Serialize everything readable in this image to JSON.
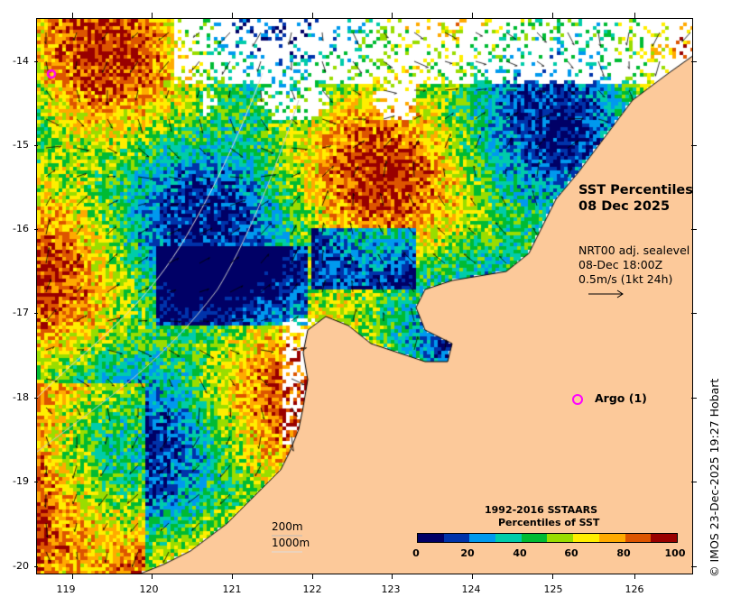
{
  "map": {
    "title_line1": "SST Percentiles",
    "title_line2": "08 Dec 2025",
    "currents": {
      "line1": "NRT00 adj. sealevel",
      "line2": "08-Dec 18:00Z",
      "line3": "0.5m/s (1kt 24h)"
    },
    "argo": {
      "label": "Argo (1)",
      "color": "#ff00ff"
    },
    "depth_contours": {
      "c200": "200m",
      "c1000": "1000m"
    },
    "y_ticks": [
      "-14",
      "-15",
      "-16",
      "-17",
      "-18",
      "-19",
      "-20"
    ],
    "x_ticks": [
      "119",
      "120",
      "121",
      "122",
      "123",
      "124",
      "125",
      "126"
    ],
    "colorbar": {
      "title_line1": "1992-2016 SSTAARS",
      "title_line2": "Percentiles of SST",
      "labels": [
        "0",
        "20",
        "40",
        "60",
        "80",
        "100"
      ],
      "colors": [
        "#000066",
        "#0033aa",
        "#0099ee",
        "#00ccaa",
        "#00bb33",
        "#99dd00",
        "#ffee00",
        "#ffaa00",
        "#dd5500",
        "#990000"
      ]
    },
    "land_color": "#fcc99a",
    "copyright": "© IMOS 23-Dec-2025 19:27 Hobart"
  }
}
